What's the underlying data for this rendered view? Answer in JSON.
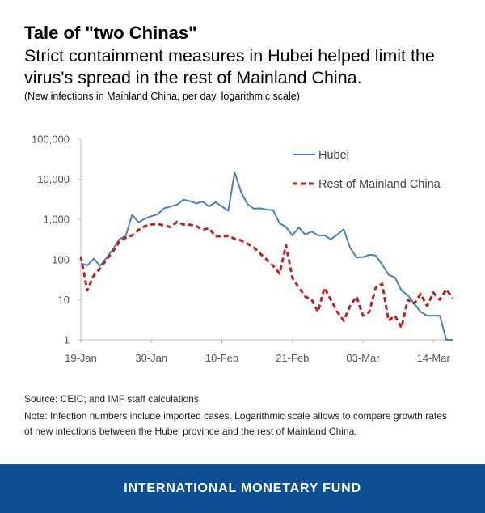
{
  "header": {
    "title": "Tale of \"two Chinas\"",
    "subtitle": "Strict containment measures in Hubei helped limit the virus's spread in the rest of Mainland China.",
    "note": "(New infections in Mainland China, per day, logarithmic scale)"
  },
  "chart_data": {
    "type": "line",
    "scale": "log",
    "ylim": [
      1,
      100000
    ],
    "yticks": [
      1,
      10,
      100,
      1000,
      10000,
      100000
    ],
    "ytick_labels": [
      "1",
      "10",
      "100",
      "1,000",
      "10,000",
      "100,000"
    ],
    "xticks": [
      {
        "day": 0,
        "label": "19-Jan"
      },
      {
        "day": 11,
        "label": "30-Jan"
      },
      {
        "day": 22,
        "label": "10-Feb"
      },
      {
        "day": 33,
        "label": "21-Feb"
      },
      {
        "day": 44,
        "label": "03-Mar"
      },
      {
        "day": 55,
        "label": "14-Mar"
      }
    ],
    "x_start": "19-Jan",
    "x_end_day": 58,
    "legend_position": "top-right",
    "series": [
      {
        "name": "Hubei",
        "color": "#4a7fc1",
        "dash": "solid",
        "values": [
          80,
          72,
          105,
          70,
          110,
          180,
          320,
          390,
          1300,
          850,
          1050,
          1200,
          1350,
          1900,
          2100,
          2350,
          3100,
          2900,
          2500,
          2800,
          2100,
          2700,
          2100,
          1650,
          14840,
          4800,
          2400,
          1850,
          1900,
          1750,
          1700,
          800,
          650,
          400,
          630,
          420,
          500,
          400,
          400,
          320,
          420,
          570,
          200,
          114,
          115,
          132,
          126,
          75,
          42,
          36,
          17,
          13,
          8,
          5,
          4,
          4,
          4,
          1,
          1
        ]
      },
      {
        "name": "Rest of Mainland China",
        "color": "#c01f1f",
        "dash": "dashed",
        "values": [
          120,
          17,
          40,
          60,
          100,
          160,
          280,
          350,
          400,
          550,
          680,
          750,
          780,
          700,
          650,
          870,
          750,
          740,
          680,
          560,
          600,
          380,
          380,
          390,
          330,
          300,
          250,
          200,
          140,
          100,
          70,
          45,
          230,
          35,
          20,
          12,
          10,
          5,
          20,
          10,
          5,
          3,
          7,
          12,
          4,
          5,
          20,
          25,
          3,
          4,
          2,
          10,
          8,
          14,
          7,
          15,
          10,
          18,
          11
        ]
      }
    ]
  },
  "footer": {
    "source": "Source: CEIC; and IMF staff calculations.",
    "note_line1": "Note: Infection numbers include imported cases. Logarithmic scale allows to compare growth rates",
    "note_line2": "of new infections between the Hubei province and the rest of Mainland China.",
    "brand": "INTERNATIONAL MONETARY FUND"
  }
}
